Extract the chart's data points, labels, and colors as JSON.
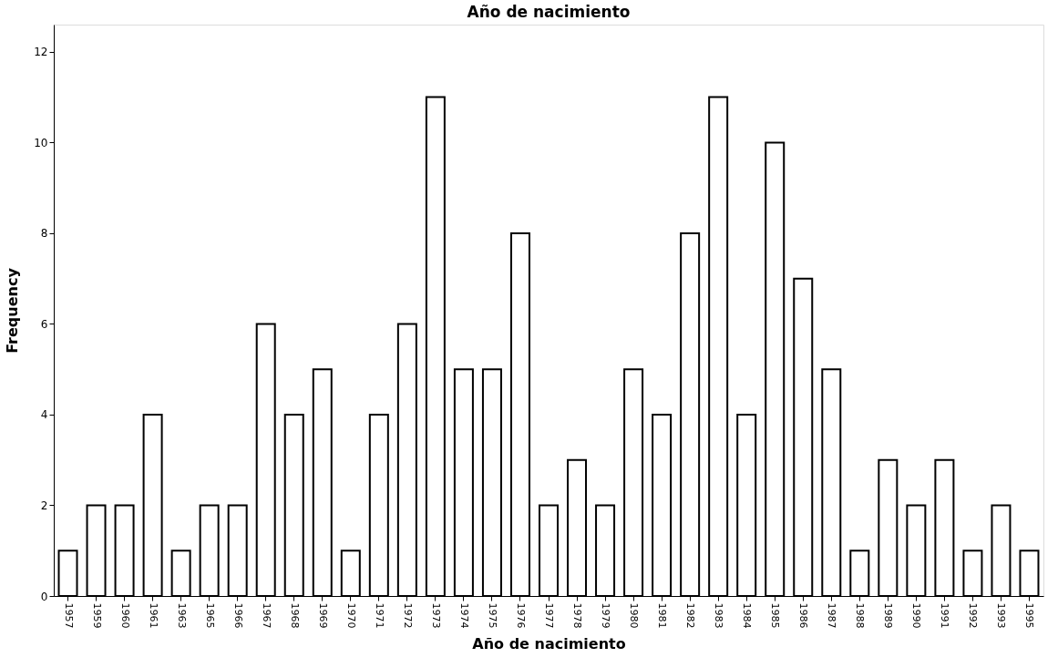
{
  "chart_data": {
    "type": "bar",
    "title": "Año de nacimiento",
    "xlabel": "Año de nacimiento",
    "ylabel": "Frequency",
    "categories": [
      "1957",
      "1959",
      "1960",
      "1961",
      "1963",
      "1965",
      "1966",
      "1967",
      "1968",
      "1969",
      "1970",
      "1971",
      "1972",
      "1973",
      "1974",
      "1975",
      "1976",
      "1977",
      "1978",
      "1979",
      "1980",
      "1981",
      "1982",
      "1983",
      "1984",
      "1985",
      "1986",
      "1987",
      "1988",
      "1989",
      "1990",
      "1991",
      "1992",
      "1993",
      "1995"
    ],
    "values": [
      1,
      2,
      2,
      4,
      1,
      2,
      2,
      6,
      4,
      5,
      1,
      4,
      6,
      11,
      5,
      5,
      8,
      2,
      3,
      2,
      5,
      4,
      8,
      11,
      4,
      10,
      7,
      5,
      1,
      3,
      2,
      3,
      1,
      2,
      1
    ],
    "color": "#ffffff",
    "ylim": [
      0,
      12.6
    ],
    "yticks": [
      0,
      2,
      4,
      6,
      8,
      10,
      12
    ],
    "grid": false
  }
}
